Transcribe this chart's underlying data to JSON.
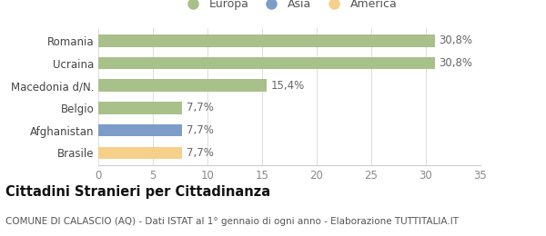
{
  "categories": [
    "Brasile",
    "Afghanistan",
    "Belgio",
    "Macedonia d/N.",
    "Ucraina",
    "Romania"
  ],
  "values": [
    7.7,
    7.7,
    7.7,
    15.4,
    30.8,
    30.8
  ],
  "bar_colors": [
    "#f5d08a",
    "#7b9dc7",
    "#a8c08a",
    "#a8c08a",
    "#a8c08a",
    "#a8c08a"
  ],
  "bar_labels": [
    "7,7%",
    "7,7%",
    "7,7%",
    "15,4%",
    "30,8%",
    "30,8%"
  ],
  "legend_labels": [
    "Europa",
    "Asia",
    "America"
  ],
  "legend_colors": [
    "#a8c08a",
    "#7b9dc7",
    "#f5d08a"
  ],
  "title": "Cittadini Stranieri per Cittadinanza",
  "subtitle": "COMUNE DI CALASCIO (AQ) - Dati ISTAT al 1° gennaio di ogni anno - Elaborazione TUTTITALIA.IT",
  "xlim": [
    0,
    35
  ],
  "xticks": [
    0,
    5,
    10,
    15,
    20,
    25,
    30,
    35
  ],
  "background_color": "#ffffff",
  "bar_height": 0.55,
  "label_fontsize": 8.5,
  "tick_fontsize": 8.5,
  "title_fontsize": 10.5,
  "subtitle_fontsize": 7.5
}
